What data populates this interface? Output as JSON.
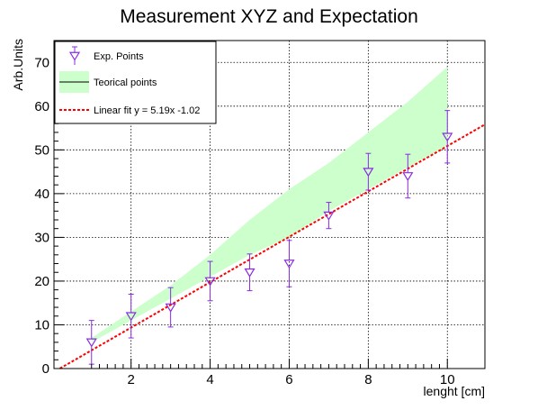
{
  "chart_data": {
    "type": "scatter",
    "title": "Measurement XYZ and Expectation",
    "xlabel": "lenght [cm]",
    "ylabel": "Arb.Units",
    "xlim": [
      0.05,
      10.95
    ],
    "ylim": [
      0,
      75
    ],
    "xticks": [
      2,
      4,
      6,
      8,
      10
    ],
    "yticks": [
      0,
      10,
      20,
      30,
      40,
      50,
      60,
      70
    ],
    "grid": true,
    "legend_position": "top-left",
    "series": [
      {
        "name": "Exp. Points",
        "kind": "points_with_error_bars",
        "marker": "open-triangle-down",
        "color": "#8a2be2",
        "x": [
          1,
          2,
          3,
          4,
          5,
          6,
          7,
          8,
          9,
          10
        ],
        "y": [
          6,
          12,
          14,
          20,
          22,
          24,
          35,
          45,
          44,
          53
        ],
        "err": [
          5,
          5,
          4.5,
          4.5,
          4.2,
          5.3,
          3,
          4.2,
          5,
          6
        ]
      },
      {
        "name": "Teorical points",
        "kind": "band",
        "color": "#ccffcc",
        "x": [
          1,
          2,
          3,
          4,
          5,
          6,
          7,
          8,
          9,
          10
        ],
        "lower": [
          6,
          11,
          16,
          21,
          26,
          30,
          36,
          41,
          46,
          51
        ],
        "upper": [
          7,
          13,
          19,
          26,
          34,
          41,
          47,
          54,
          61,
          69
        ]
      },
      {
        "name": "Linear fit  y = 5.19x -1.02",
        "kind": "line",
        "color": "#ff0000",
        "style": "dashed",
        "slope": 5.19,
        "intercept": -1.02,
        "x_range": [
          0.2,
          10.95
        ]
      }
    ]
  }
}
